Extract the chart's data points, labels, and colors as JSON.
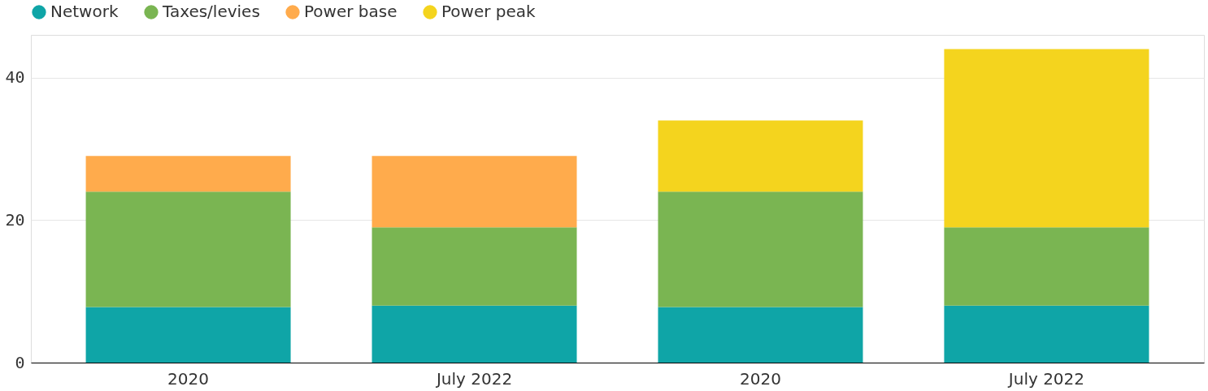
{
  "chart_data": {
    "type": "bar",
    "stacked": true,
    "categories": [
      "2020",
      "July 2022",
      "2020",
      "July 2022"
    ],
    "series": [
      {
        "name": "Network",
        "color": "#0fa5a7",
        "values": [
          7.8,
          8,
          7.8,
          8
        ]
      },
      {
        "name": "Taxes/levies",
        "color": "#7ab552",
        "values": [
          16.2,
          11,
          16.2,
          11
        ]
      },
      {
        "name": "Power base",
        "color": "#ffab4c",
        "values": [
          5,
          10,
          null,
          null
        ]
      },
      {
        "name": "Power peak",
        "color": "#f4d41e",
        "values": [
          null,
          null,
          10,
          25
        ]
      }
    ],
    "ylim": [
      0,
      46
    ],
    "yticks": [
      0,
      20,
      40
    ],
    "grid": "y",
    "legend": "top left"
  }
}
